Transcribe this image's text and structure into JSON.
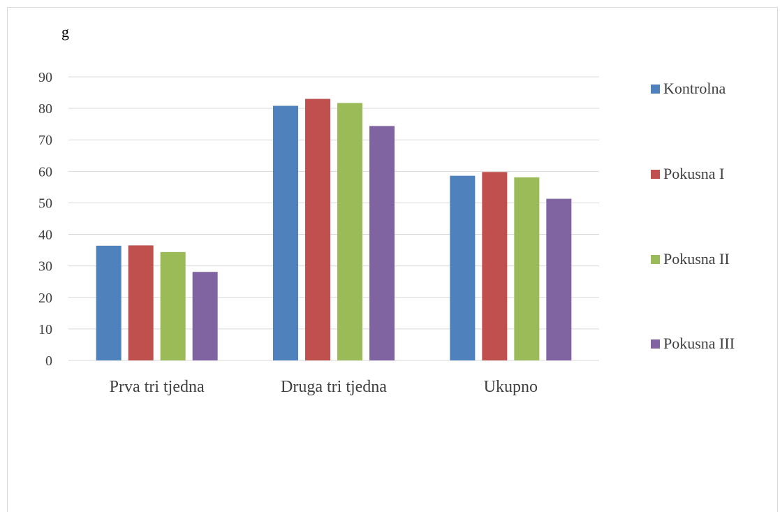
{
  "chart_data": {
    "type": "bar",
    "ylabel": "g",
    "categories": [
      "Prva tri tjedna",
      "Druga tri tjedna",
      "Ukupno"
    ],
    "series": [
      {
        "name": "Kontrolna",
        "color": "#4f81bd",
        "values": [
          36.4,
          80.8,
          58.6
        ]
      },
      {
        "name": "Pokusna I",
        "color": "#c0504d",
        "values": [
          36.5,
          83.0,
          59.8
        ]
      },
      {
        "name": "Pokusna II",
        "color": "#9bbb59",
        "values": [
          34.4,
          81.7,
          58.1
        ]
      },
      {
        "name": "Pokusna III",
        "color": "#8064a2",
        "values": [
          28.1,
          74.4,
          51.3
        ]
      }
    ],
    "ylim": [
      0,
      90
    ],
    "yticks": [
      0,
      10,
      20,
      30,
      40,
      50,
      60,
      70,
      80,
      90
    ],
    "grid": true,
    "legend_position": "right"
  }
}
